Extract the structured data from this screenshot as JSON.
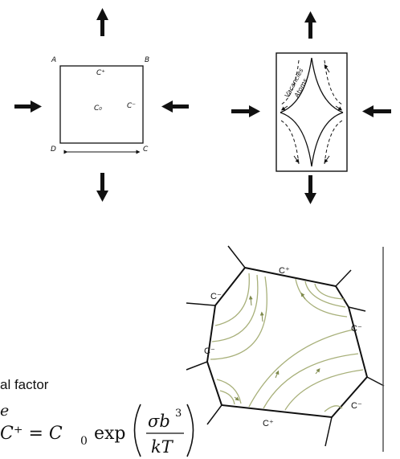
{
  "left_square": {
    "corners": {
      "a": "A",
      "b": "B",
      "c": "C",
      "d": "D"
    },
    "c_plus": "C⁺",
    "c_zero": "C₀",
    "c_minus": "C⁻"
  },
  "right_rect": {
    "vacancies_label": "Vacancies",
    "atoms_label": "Atoms"
  },
  "hexagon": {
    "c_plus_top": "C⁺",
    "c_minus_left_upper": "C⁻",
    "c_minus_right_upper": "C⁻",
    "c_minus_left_lower": "C⁻",
    "c_minus_right_lower": "C⁻",
    "c_plus_bottom": "C⁺"
  },
  "text": {
    "partial_factor": "al factor",
    "partial_e": "e"
  },
  "formula": {
    "lhs": "C⁺ = C",
    "subscript": "0",
    "exp": "exp",
    "numerator": "σb",
    "numerator_power": "3",
    "denominator": "kT"
  },
  "colors": {
    "line": "#111111",
    "flow": "#a8b07a"
  }
}
